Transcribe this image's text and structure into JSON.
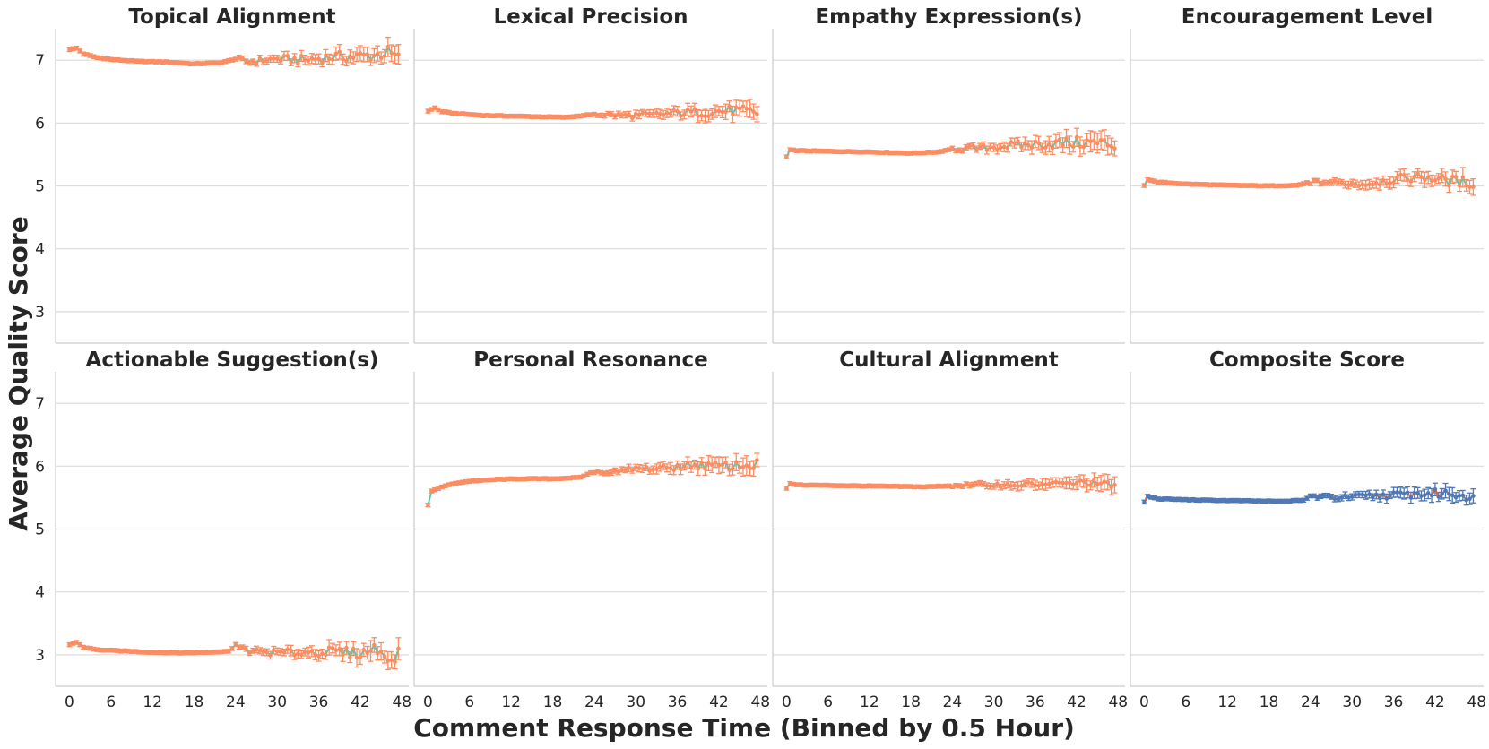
{
  "chart_data": {
    "type": "line",
    "figure_xlabel": "Comment Response Time (Binned by 0.5 Hour)",
    "figure_ylabel": "Average Quality Score",
    "xlim": [
      -2,
      49
    ],
    "ylim": [
      2.5,
      7.5
    ],
    "xticks": [
      0,
      6,
      12,
      18,
      24,
      30,
      36,
      42,
      48
    ],
    "yticks": [
      3,
      4,
      5,
      6,
      7
    ],
    "bin_width_hours": 0.5,
    "grid": "horizontal",
    "colors": {
      "line_default": "#66c2a5",
      "marker_default": "#fc8d62",
      "line_composite": "#e45a3c",
      "marker_composite": "#4e79b5",
      "grid": "#dcdcdc",
      "axis": "#cccccc",
      "text": "#262626"
    },
    "panels": [
      {
        "title": "Topical Alignment",
        "anchors": [
          [
            0,
            7.17
          ],
          [
            1,
            7.19
          ],
          [
            2,
            7.1
          ],
          [
            4,
            7.04
          ],
          [
            6,
            7.01
          ],
          [
            10,
            6.98
          ],
          [
            14,
            6.97
          ],
          [
            18,
            6.94
          ],
          [
            22,
            6.96
          ],
          [
            24,
            7.02
          ],
          [
            26,
            6.97
          ],
          [
            30,
            7.02
          ],
          [
            34,
            7.0
          ],
          [
            38,
            7.05
          ],
          [
            42,
            7.06
          ],
          [
            44,
            7.08
          ],
          [
            46,
            7.12
          ],
          [
            47.5,
            7.02
          ]
        ],
        "noise_start": 24,
        "noise_amp": 0.11,
        "err_base": 0.03,
        "err_growth": 0.1
      },
      {
        "title": "Lexical Precision",
        "anchors": [
          [
            0,
            6.19
          ],
          [
            1,
            6.24
          ],
          [
            2,
            6.18
          ],
          [
            4,
            6.15
          ],
          [
            8,
            6.12
          ],
          [
            12,
            6.11
          ],
          [
            16,
            6.1
          ],
          [
            20,
            6.09
          ],
          [
            24,
            6.14
          ],
          [
            28,
            6.12
          ],
          [
            32,
            6.12
          ],
          [
            36,
            6.16
          ],
          [
            40,
            6.17
          ],
          [
            44,
            6.2
          ],
          [
            47.5,
            6.16
          ]
        ],
        "noise_start": 24,
        "noise_amp": 0.09,
        "err_base": 0.03,
        "err_growth": 0.09
      },
      {
        "title": "Empathy Expression(s)",
        "anchors": [
          [
            0,
            5.46
          ],
          [
            0.5,
            5.57
          ],
          [
            2,
            5.56
          ],
          [
            6,
            5.55
          ],
          [
            12,
            5.54
          ],
          [
            18,
            5.52
          ],
          [
            22,
            5.54
          ],
          [
            24,
            5.59
          ],
          [
            28,
            5.6
          ],
          [
            32,
            5.64
          ],
          [
            36,
            5.66
          ],
          [
            40,
            5.68
          ],
          [
            44,
            5.69
          ],
          [
            47.5,
            5.66
          ]
        ],
        "noise_start": 24,
        "noise_amp": 0.11,
        "err_base": 0.03,
        "err_growth": 0.12
      },
      {
        "title": "Encouragement Level",
        "anchors": [
          [
            0,
            5.01
          ],
          [
            0.5,
            5.1
          ],
          [
            2,
            5.06
          ],
          [
            6,
            5.03
          ],
          [
            12,
            5.01
          ],
          [
            18,
            5.0
          ],
          [
            22,
            5.01
          ],
          [
            24,
            5.06
          ],
          [
            28,
            5.05
          ],
          [
            32,
            5.03
          ],
          [
            36,
            5.1
          ],
          [
            40,
            5.15
          ],
          [
            44,
            5.08
          ],
          [
            47.5,
            5.05
          ]
        ],
        "noise_start": 24,
        "noise_amp": 0.09,
        "err_base": 0.03,
        "err_growth": 0.1
      },
      {
        "title": "Actionable Suggestion(s)",
        "anchors": [
          [
            0,
            3.16
          ],
          [
            1,
            3.2
          ],
          [
            2,
            3.12
          ],
          [
            4,
            3.08
          ],
          [
            8,
            3.06
          ],
          [
            12,
            3.04
          ],
          [
            16,
            3.03
          ],
          [
            20,
            3.04
          ],
          [
            23,
            3.06
          ],
          [
            24,
            3.14
          ],
          [
            26,
            3.06
          ],
          [
            30,
            3.03
          ],
          [
            34,
            3.04
          ],
          [
            38,
            3.05
          ],
          [
            42,
            3.02
          ],
          [
            44,
            3.1
          ],
          [
            46,
            3.0
          ],
          [
            47,
            2.82
          ],
          [
            47.5,
            3.18
          ]
        ],
        "noise_start": 24,
        "noise_amp": 0.1,
        "err_base": 0.03,
        "err_growth": 0.12
      },
      {
        "title": "Personal Resonance",
        "anchors": [
          [
            0,
            5.38
          ],
          [
            0.5,
            5.6
          ],
          [
            2,
            5.67
          ],
          [
            4,
            5.73
          ],
          [
            6,
            5.76
          ],
          [
            10,
            5.79
          ],
          [
            14,
            5.8
          ],
          [
            18,
            5.8
          ],
          [
            22,
            5.82
          ],
          [
            24,
            5.92
          ],
          [
            26,
            5.88
          ],
          [
            30,
            5.96
          ],
          [
            34,
            5.96
          ],
          [
            38,
            6.02
          ],
          [
            42,
            6.0
          ],
          [
            46,
            6.01
          ],
          [
            47.5,
            6.02
          ]
        ],
        "noise_start": 24,
        "noise_amp": 0.08,
        "err_base": 0.03,
        "err_growth": 0.1
      },
      {
        "title": "Cultural Alignment",
        "anchors": [
          [
            0,
            5.65
          ],
          [
            0.5,
            5.72
          ],
          [
            2,
            5.7
          ],
          [
            8,
            5.69
          ],
          [
            14,
            5.68
          ],
          [
            20,
            5.67
          ],
          [
            24,
            5.69
          ],
          [
            28,
            5.7
          ],
          [
            32,
            5.7
          ],
          [
            36,
            5.71
          ],
          [
            40,
            5.72
          ],
          [
            44,
            5.74
          ],
          [
            47.5,
            5.68
          ]
        ],
        "noise_start": 24,
        "noise_amp": 0.06,
        "err_base": 0.03,
        "err_growth": 0.08
      },
      {
        "title": "Composite Score",
        "anchors": [
          [
            0,
            5.43
          ],
          [
            0.5,
            5.52
          ],
          [
            2,
            5.48
          ],
          [
            8,
            5.46
          ],
          [
            14,
            5.45
          ],
          [
            20,
            5.44
          ],
          [
            23,
            5.46
          ],
          [
            24,
            5.52
          ],
          [
            28,
            5.5
          ],
          [
            32,
            5.52
          ],
          [
            36,
            5.54
          ],
          [
            40,
            5.56
          ],
          [
            44,
            5.57
          ],
          [
            47.5,
            5.52
          ]
        ],
        "noise_start": 24,
        "noise_amp": 0.08,
        "err_base": 0.03,
        "err_growth": 0.08,
        "composite": true
      }
    ]
  }
}
